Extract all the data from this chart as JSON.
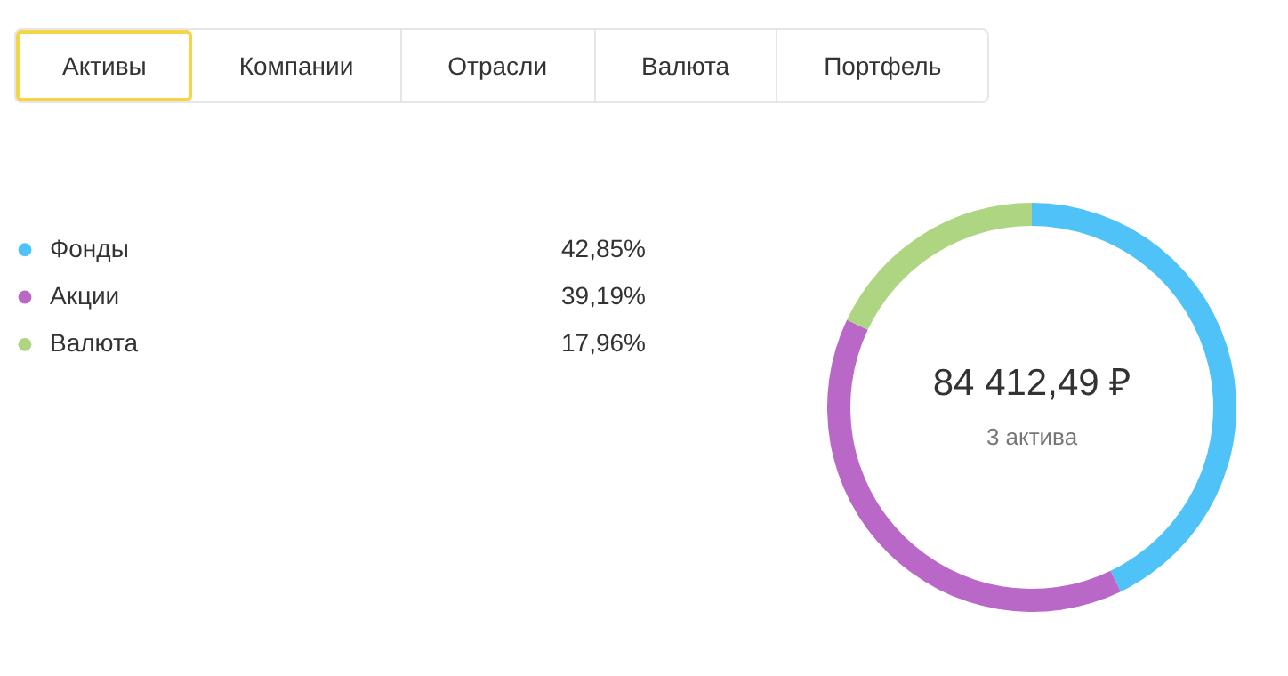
{
  "chart_data": {
    "type": "donut",
    "title": "84 412,49 ₽",
    "subtitle": "3 актива",
    "annotations": [
      "Активы",
      "Компании",
      "Отрасли",
      "Валюта",
      "Портфель"
    ],
    "categories": [
      "Фонды",
      "Акции",
      "Валюта"
    ],
    "values": [
      42.85,
      39.19,
      17.96
    ],
    "colors": [
      "#4fc3f7",
      "#ba68c8",
      "#aed581"
    ],
    "value_labels": [
      "42,85%",
      "39,19%",
      "17,96%"
    ],
    "legend": "left"
  }
}
